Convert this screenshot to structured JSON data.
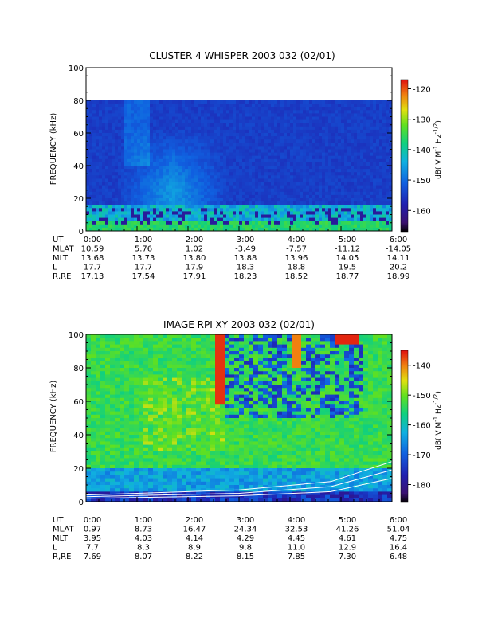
{
  "chart_data": [
    {
      "type": "heatmap",
      "title": "CLUSTER 4 WHISPER 2003 032 (02/01)",
      "ylabel": "FREQUENCY (kHz)",
      "ylim": [
        0,
        100
      ],
      "yticks": [
        "0",
        "20",
        "40",
        "60",
        "80",
        "100"
      ],
      "data_ylim": [
        0,
        80
      ],
      "colorbar": {
        "label_parts": [
          "dB( V M",
          "-1",
          " Hz",
          "-1/2",
          ")"
        ],
        "range": [
          -167,
          -117
        ],
        "ticks": [
          "-120",
          "-130",
          "-140",
          "-150",
          "-160"
        ]
      },
      "x_table": {
        "rows": [
          {
            "label": "UT",
            "values": [
              "0:00",
              "1:00",
              "2:00",
              "3:00",
              "4:00",
              "5:00",
              "6:00"
            ]
          },
          {
            "label": "MLAT",
            "values": [
              "10.59",
              "5.76",
              "1.02",
              "-3.49",
              "-7.57",
              "-11.12",
              "-14.05"
            ]
          },
          {
            "label": "MLT",
            "values": [
              "13.68",
              "13.73",
              "13.80",
              "13.88",
              "13.96",
              "14.05",
              "14.11"
            ]
          },
          {
            "label": "L",
            "values": [
              "17.7",
              "17.7",
              "17.9",
              "18.3",
              "18.8",
              "19.5",
              "20.2"
            ]
          },
          {
            "label": "R,RE",
            "values": [
              "17.13",
              "17.54",
              "17.91",
              "18.23",
              "18.52",
              "18.77",
              "18.99"
            ]
          }
        ]
      },
      "colors": {
        "low": "#1f1a8c",
        "mid": "#2a8fe0",
        "high": "#c01010",
        "band_low": "#1fc24a"
      }
    },
    {
      "type": "heatmap",
      "title": "IMAGE RPI XY 2003 032 (02/01)",
      "ylabel": "FREQUENCY (kHz)",
      "ylim": [
        0,
        100
      ],
      "yticks": [
        "0",
        "20",
        "40",
        "60",
        "80",
        "100"
      ],
      "colorbar": {
        "label_parts": [
          "dB( V M",
          "-1",
          " Hz",
          "-1/2",
          ")"
        ],
        "range": [
          -186,
          -135
        ],
        "ticks": [
          "-140",
          "-150",
          "-160",
          "-170",
          "-180"
        ]
      },
      "x_table": {
        "rows": [
          {
            "label": "UT",
            "values": [
              "0:00",
              "1:00",
              "2:00",
              "3:00",
              "4:00",
              "5:00",
              "6:00"
            ]
          },
          {
            "label": "MLAT",
            "values": [
              "0.97",
              "8.73",
              "16.47",
              "24.34",
              "32.53",
              "41.26",
              "51.04"
            ]
          },
          {
            "label": "MLT",
            "values": [
              "3.95",
              "4.03",
              "4.14",
              "4.29",
              "4.45",
              "4.61",
              "4.75"
            ]
          },
          {
            "label": "L",
            "values": [
              "7.7",
              "8.3",
              "8.9",
              "9.8",
              "11.0",
              "12.9",
              "16.4"
            ]
          },
          {
            "label": "R,RE",
            "values": [
              "7.69",
              "8.07",
              "8.22",
              "8.15",
              "7.85",
              "7.30",
              "6.48"
            ]
          }
        ]
      },
      "colors": {
        "low": "#1f1a8c",
        "mid": "#2fd0a0",
        "high": "#d81010",
        "overlay_lines": "#ffffff"
      }
    }
  ]
}
